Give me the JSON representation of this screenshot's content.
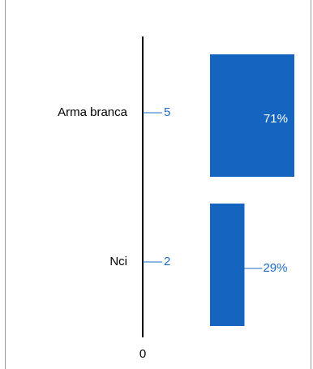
{
  "chart_data": {
    "type": "bar",
    "categories": [
      "Arma branca",
      "Nci"
    ],
    "values": [
      5,
      2
    ],
    "percent_values": [
      71,
      29
    ],
    "percent_labels": [
      "71%",
      "29%"
    ],
    "xticks": [
      0
    ],
    "color": "#1565c0"
  }
}
